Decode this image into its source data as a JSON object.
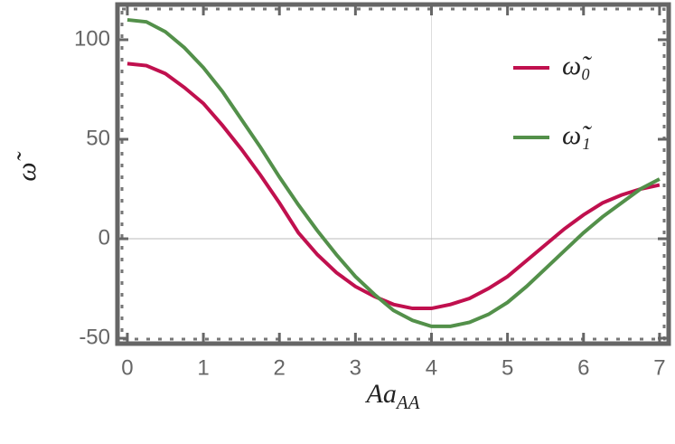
{
  "chart_data": {
    "type": "line",
    "x_label": {
      "main": "Aa",
      "sub": "AA"
    },
    "y_label": "ω̃",
    "x": [
      0,
      0.25,
      0.5,
      0.75,
      1,
      1.25,
      1.5,
      1.75,
      2,
      2.25,
      2.5,
      2.75,
      3,
      3.25,
      3.5,
      3.75,
      4,
      4.25,
      4.5,
      4.75,
      5,
      5.25,
      5.5,
      5.75,
      6,
      6.25,
      6.5,
      6.75,
      7
    ],
    "series": [
      {
        "name": "ω̃₀",
        "color": "#c0104e",
        "values": [
          88,
          87,
          83,
          76,
          68,
          57,
          45,
          32,
          18,
          3,
          -8,
          -17,
          -24,
          -29,
          -33,
          -35,
          -35,
          -33,
          -30,
          -25,
          -19,
          -11,
          -3,
          5,
          12,
          18,
          22,
          25,
          27
        ]
      },
      {
        "name": "ω̃₁",
        "color": "#53904a",
        "values": [
          110,
          109,
          104,
          96,
          86,
          74,
          60,
          46,
          31,
          17,
          4,
          -8,
          -19,
          -28,
          -36,
          -41,
          -44,
          -44,
          -42,
          -38,
          -32,
          -24,
          -15,
          -6,
          3,
          11,
          18,
          25,
          30
        ]
      }
    ],
    "xlim": [
      -0.13,
      7.12
    ],
    "ylim": [
      -52.7,
      117.7
    ],
    "xticks": [
      0,
      1,
      2,
      3,
      4,
      5,
      6,
      7
    ],
    "yticks": [
      -50,
      0,
      50,
      100
    ],
    "gridlines": {
      "x": [
        4
      ],
      "y": [
        0
      ]
    },
    "legend": "upper right"
  }
}
